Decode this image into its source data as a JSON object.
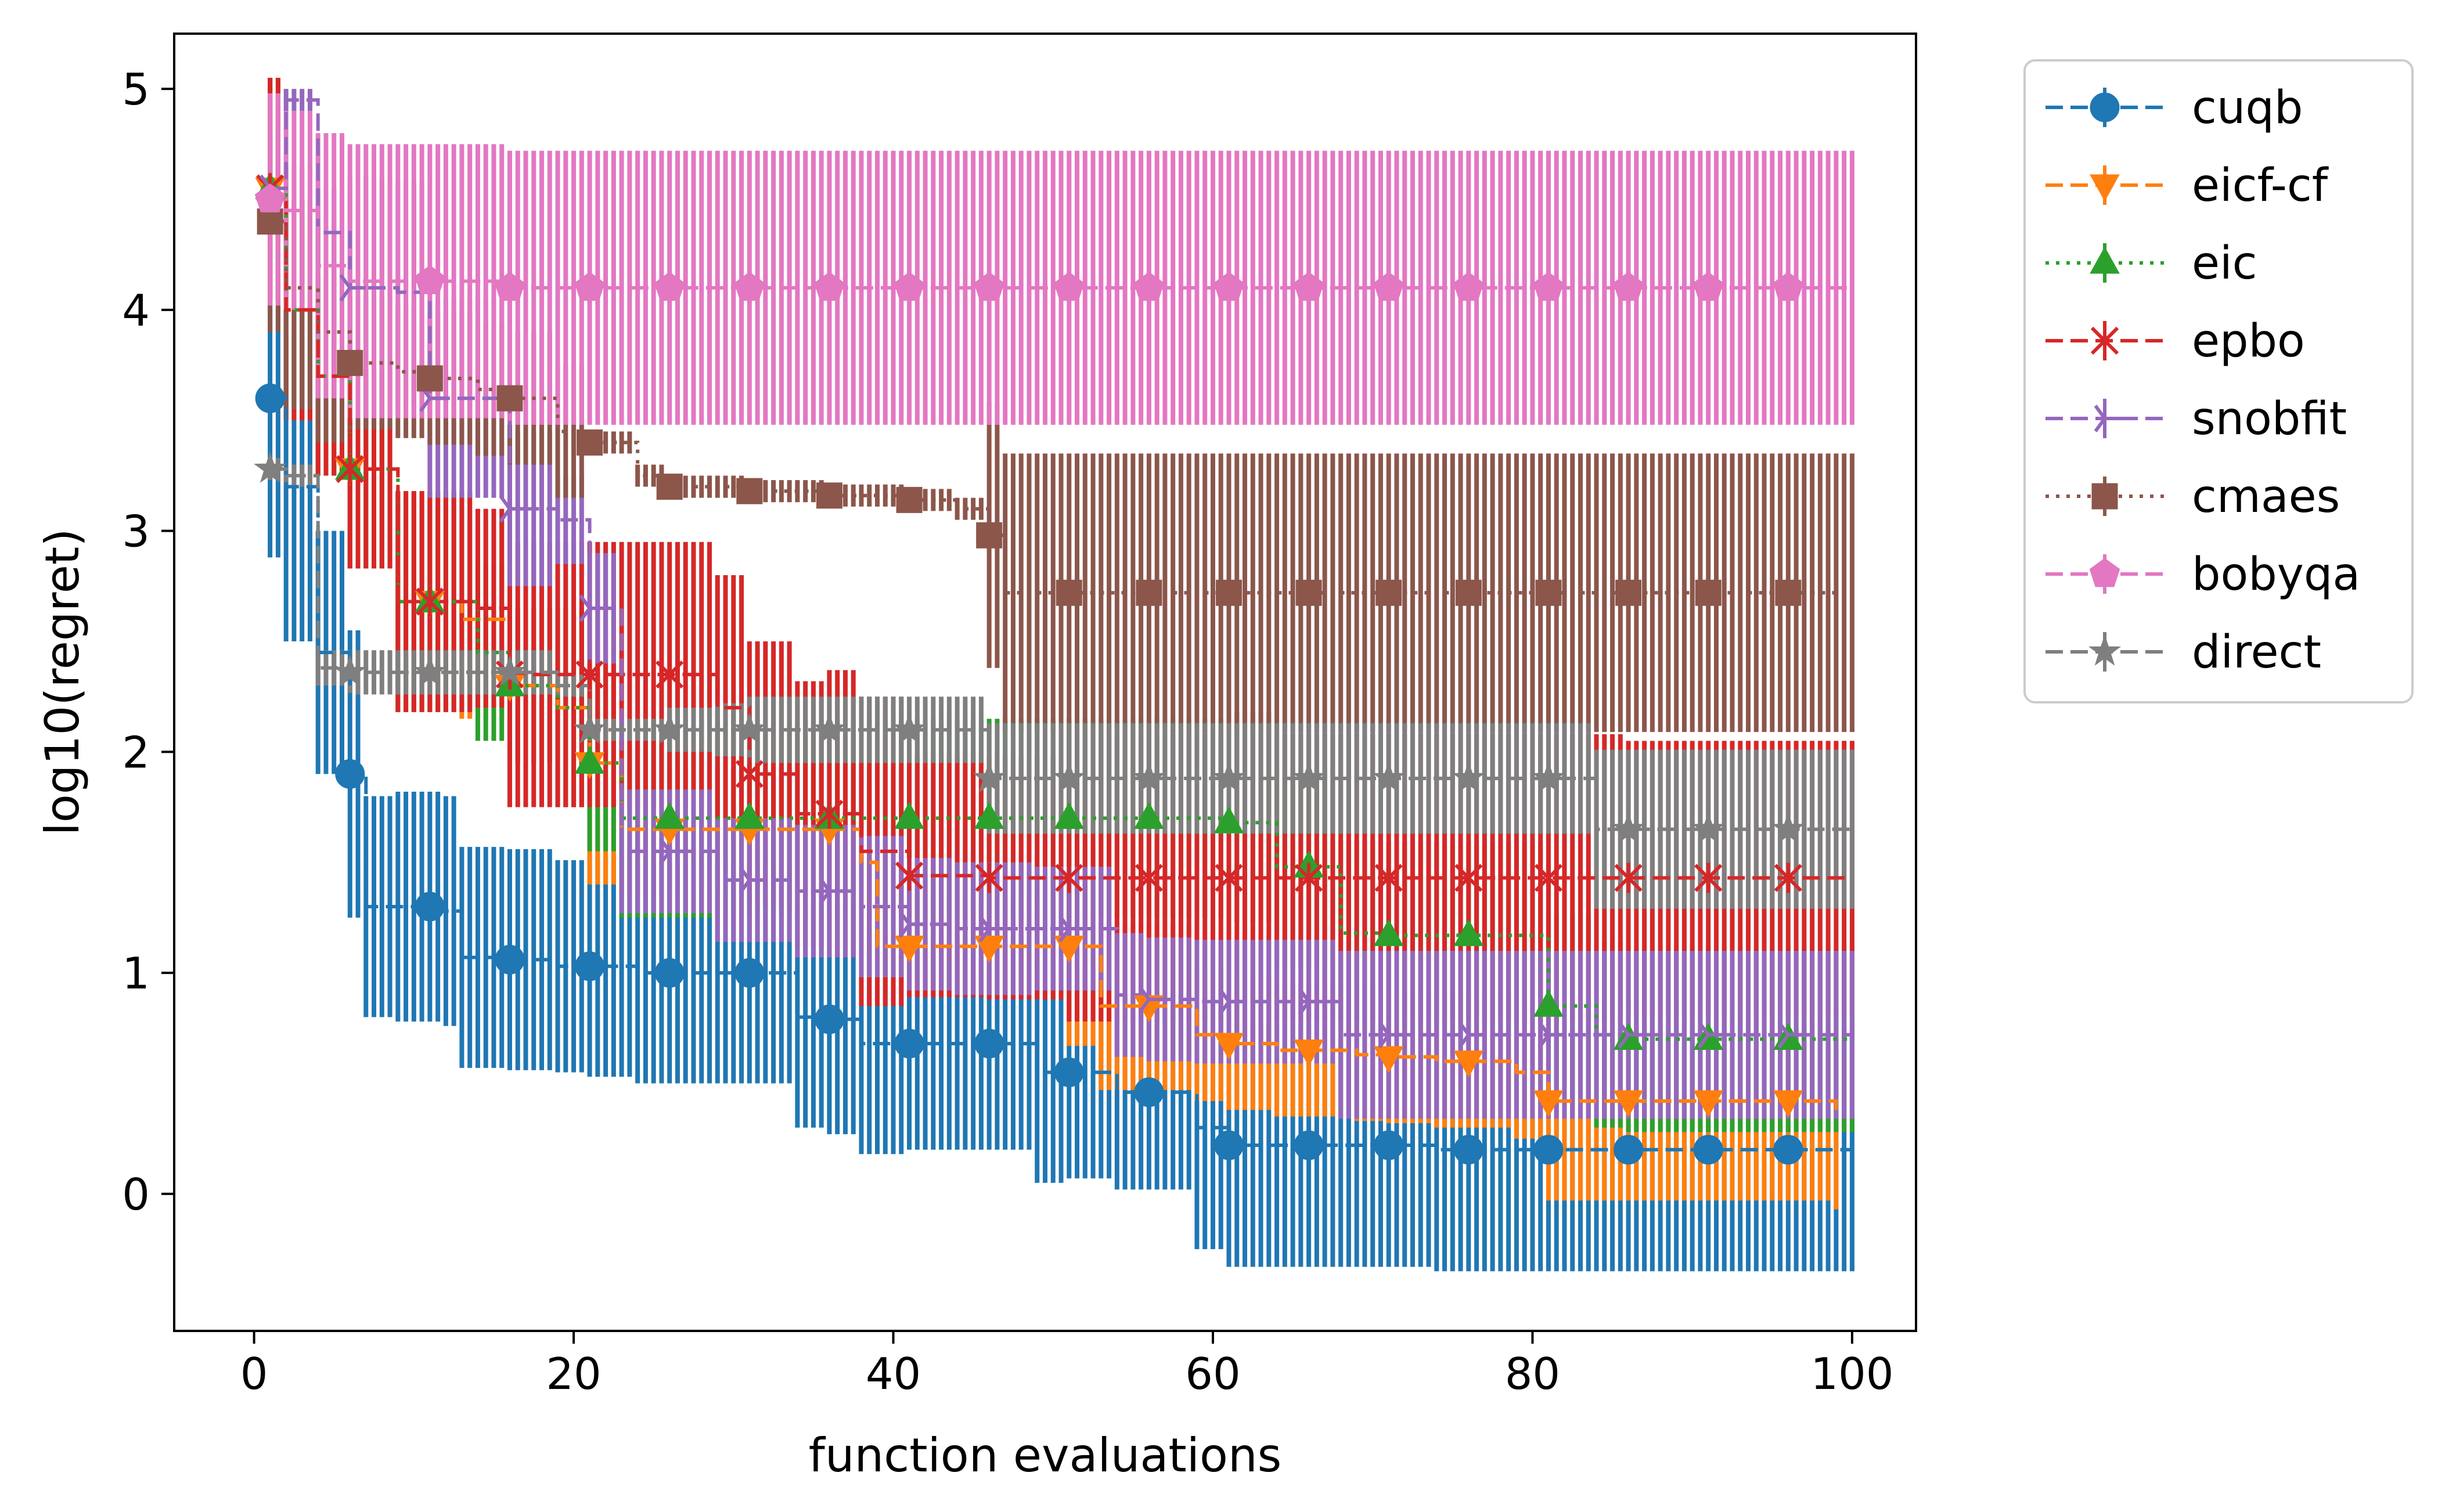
{
  "chart_data": {
    "type": "line",
    "title": "",
    "xlabel": "function evaluations",
    "ylabel": "log10(regret)",
    "xlim": [
      -5,
      104
    ],
    "ylim": [
      -0.62,
      5.25
    ],
    "xticks": [
      0,
      20,
      40,
      60,
      80,
      100
    ],
    "yticks": [
      0,
      1,
      2,
      3,
      4,
      5
    ],
    "grid": false,
    "legend_position": "outside-top-right",
    "series": [
      {
        "name": "cuqb",
        "color": "#1f77b4",
        "dash": "dashed",
        "marker": "circle",
        "x": [
          1,
          2,
          4,
          6,
          7,
          9,
          12,
          13,
          16,
          19,
          21,
          24,
          26,
          29,
          31,
          34,
          36,
          38,
          41,
          44,
          46,
          49,
          51,
          54,
          56,
          59,
          61,
          64,
          66,
          69,
          71,
          74,
          76,
          79,
          81,
          84,
          86,
          89,
          91,
          94,
          96,
          100
        ],
        "y": [
          3.6,
          3.2,
          2.45,
          1.9,
          1.3,
          1.3,
          1.28,
          1.07,
          1.06,
          1.03,
          1.03,
          1.0,
          1.0,
          1.0,
          1.0,
          0.8,
          0.79,
          0.68,
          0.68,
          0.68,
          0.68,
          0.55,
          0.55,
          0.46,
          0.46,
          0.3,
          0.22,
          0.22,
          0.22,
          0.22,
          0.22,
          0.2,
          0.2,
          0.2,
          0.2,
          0.2,
          0.2,
          0.2,
          0.2,
          0.2,
          0.2,
          0.2
        ],
        "err": [
          0.72,
          0.7,
          0.55,
          0.65,
          0.5,
          0.52,
          0.52,
          0.5,
          0.5,
          0.48,
          0.5,
          0.5,
          0.5,
          0.5,
          0.5,
          0.5,
          0.52,
          0.5,
          0.48,
          0.48,
          0.48,
          0.5,
          0.48,
          0.44,
          0.44,
          0.55,
          0.55,
          0.55,
          0.55,
          0.55,
          0.55,
          0.55,
          0.55,
          0.55,
          0.55,
          0.55,
          0.55,
          0.55,
          0.55,
          0.55,
          0.55,
          0.55
        ],
        "markers_x": [
          1,
          6,
          11,
          16,
          21,
          26,
          31,
          36,
          41,
          46,
          51,
          56,
          61,
          66,
          71,
          76,
          81,
          86,
          91,
          96
        ]
      },
      {
        "name": "eicf-cf",
        "color": "#ff7f0e",
        "dash": "dashed",
        "marker": "triangle-down",
        "x": [
          1,
          2,
          4,
          6,
          9,
          11,
          13,
          16,
          19,
          21,
          23,
          26,
          29,
          31,
          34,
          36,
          38,
          39,
          41,
          44,
          46,
          49,
          51,
          53,
          56,
          59,
          61,
          64,
          66,
          69,
          71,
          74,
          76,
          79,
          81,
          84,
          86,
          89,
          91,
          94,
          96,
          99
        ],
        "y": [
          4.55,
          4.0,
          3.7,
          3.28,
          2.68,
          2.68,
          2.6,
          2.3,
          2.2,
          1.95,
          1.65,
          1.65,
          1.65,
          1.65,
          1.65,
          1.65,
          1.5,
          1.12,
          1.12,
          1.12,
          1.12,
          1.12,
          1.12,
          0.85,
          0.85,
          0.72,
          0.68,
          0.65,
          0.65,
          0.63,
          0.62,
          0.6,
          0.6,
          0.55,
          0.42,
          0.42,
          0.42,
          0.42,
          0.42,
          0.42,
          0.42,
          0.38
        ],
        "err": [
          0.5,
          0.5,
          0.45,
          0.45,
          0.5,
          0.5,
          0.45,
          0.35,
          0.45,
          0.55,
          0.3,
          0.28,
          0.28,
          0.28,
          0.3,
          0.3,
          0.38,
          0.2,
          0.22,
          0.22,
          0.22,
          0.22,
          0.45,
          0.38,
          0.38,
          0.3,
          0.3,
          0.3,
          0.3,
          0.3,
          0.3,
          0.3,
          0.3,
          0.3,
          0.45,
          0.45,
          0.45,
          0.45,
          0.45,
          0.45,
          0.45,
          0.45
        ],
        "markers_x": [
          1,
          6,
          11,
          16,
          21,
          26,
          31,
          36,
          41,
          46,
          51,
          56,
          61,
          66,
          71,
          76,
          81,
          86,
          91,
          96
        ]
      },
      {
        "name": "eic",
        "color": "#2ca02c",
        "dash": "dotted",
        "marker": "triangle-up",
        "x": [
          1,
          2,
          4,
          6,
          9,
          11,
          14,
          16,
          19,
          21,
          23,
          26,
          29,
          31,
          34,
          36,
          38,
          41,
          44,
          46,
          49,
          51,
          54,
          56,
          59,
          61,
          64,
          66,
          68,
          71,
          74,
          76,
          79,
          81,
          84,
          86,
          89,
          91,
          94,
          96,
          100
        ],
        "y": [
          4.55,
          4.0,
          3.7,
          3.28,
          2.68,
          2.68,
          2.45,
          2.3,
          2.2,
          1.95,
          1.7,
          1.7,
          1.7,
          1.7,
          1.7,
          1.7,
          1.7,
          1.7,
          1.7,
          1.7,
          1.7,
          1.7,
          1.7,
          1.7,
          1.7,
          1.68,
          1.48,
          1.48,
          1.18,
          1.17,
          1.17,
          1.17,
          1.17,
          0.85,
          0.72,
          0.7,
          0.7,
          0.7,
          0.7,
          0.7,
          0.7
        ],
        "err": [
          0.5,
          0.5,
          0.45,
          0.45,
          0.5,
          0.5,
          0.4,
          0.35,
          0.45,
          0.4,
          0.45,
          0.45,
          0.45,
          0.45,
          0.45,
          0.45,
          0.45,
          0.45,
          0.45,
          0.45,
          0.45,
          0.45,
          0.45,
          0.45,
          0.45,
          0.45,
          0.45,
          0.45,
          0.42,
          0.42,
          0.42,
          0.42,
          0.42,
          0.42,
          0.42,
          0.42,
          0.42,
          0.42,
          0.42,
          0.42,
          0.42
        ],
        "markers_x": [
          1,
          6,
          11,
          16,
          21,
          26,
          31,
          36,
          41,
          46,
          51,
          56,
          61,
          66,
          71,
          76,
          81,
          86,
          91,
          96
        ]
      },
      {
        "name": "epbo",
        "color": "#d62728",
        "dash": "dashed",
        "marker": "x-star",
        "x": [
          1,
          2,
          4,
          6,
          9,
          11,
          14,
          16,
          19,
          21,
          24,
          26,
          29,
          31,
          34,
          36,
          38,
          41,
          44,
          46,
          49,
          51,
          54,
          56,
          59,
          61,
          64,
          66,
          69,
          71,
          74,
          76,
          79,
          81,
          84,
          86,
          89,
          91,
          94,
          96,
          100
        ],
        "y": [
          4.55,
          4.0,
          3.7,
          3.28,
          2.68,
          2.68,
          2.65,
          2.35,
          2.35,
          2.35,
          2.35,
          2.35,
          2.2,
          1.9,
          1.72,
          1.72,
          1.55,
          1.44,
          1.44,
          1.43,
          1.43,
          1.43,
          1.43,
          1.43,
          1.43,
          1.43,
          1.43,
          1.43,
          1.43,
          1.43,
          1.43,
          1.43,
          1.43,
          1.43,
          1.43,
          1.43,
          1.43,
          1.43,
          1.43,
          1.43,
          1.43
        ],
        "err": [
          0.5,
          0.5,
          0.45,
          0.45,
          0.5,
          0.5,
          0.45,
          0.6,
          0.6,
          0.6,
          0.6,
          0.6,
          0.6,
          0.6,
          0.6,
          0.65,
          0.7,
          0.55,
          0.55,
          0.55,
          0.55,
          0.65,
          0.65,
          0.65,
          0.65,
          0.75,
          0.65,
          0.65,
          0.65,
          0.65,
          0.65,
          0.65,
          0.65,
          0.65,
          0.65,
          0.62,
          0.62,
          0.62,
          0.62,
          0.62,
          0.62
        ],
        "markers_x": [
          1,
          6,
          11,
          16,
          21,
          26,
          31,
          36,
          41,
          46,
          51,
          56,
          61,
          66,
          71,
          76,
          81,
          86,
          91,
          96
        ]
      },
      {
        "name": "snobfit",
        "color": "#9467bd",
        "dash": "dashed",
        "marker": "tri-right",
        "x": [
          1,
          2,
          4,
          6,
          9,
          11,
          14,
          16,
          19,
          21,
          23,
          26,
          29,
          31,
          34,
          36,
          38,
          41,
          44,
          46,
          49,
          51,
          54,
          56,
          59,
          61,
          64,
          66,
          68,
          71,
          74,
          76,
          79,
          81,
          84,
          86,
          89,
          91,
          94,
          96,
          100
        ],
        "y": [
          4.55,
          4.95,
          4.35,
          4.1,
          4.08,
          3.6,
          3.6,
          3.1,
          3.05,
          2.65,
          1.55,
          1.55,
          1.42,
          1.42,
          1.37,
          1.37,
          1.3,
          1.22,
          1.2,
          1.2,
          1.2,
          1.2,
          0.9,
          0.88,
          0.87,
          0.87,
          0.87,
          0.87,
          0.72,
          0.72,
          0.72,
          0.72,
          0.72,
          0.72,
          0.72,
          0.72,
          0.72,
          0.72,
          0.72,
          0.72,
          0.72
        ],
        "err": [
          0.25,
          0.05,
          0.2,
          0.5,
          0.5,
          0.45,
          0.45,
          0.35,
          0.2,
          0.25,
          0.28,
          0.28,
          0.28,
          0.28,
          0.3,
          0.3,
          0.32,
          0.3,
          0.3,
          0.3,
          0.28,
          0.28,
          0.28,
          0.28,
          0.28,
          0.28,
          0.28,
          0.28,
          0.38,
          0.38,
          0.38,
          0.38,
          0.38,
          0.38,
          0.38,
          0.38,
          0.38,
          0.38,
          0.38,
          0.38,
          0.38
        ],
        "markers_x": [
          1,
          6,
          11,
          16,
          21,
          26,
          31,
          36,
          41,
          46,
          51,
          56,
          61,
          66,
          71,
          76,
          81,
          86,
          91,
          96
        ]
      },
      {
        "name": "cmaes",
        "color": "#8c564b",
        "dash": "dotted",
        "marker": "square",
        "x": [
          1,
          2,
          4,
          6,
          9,
          11,
          14,
          16,
          19,
          21,
          24,
          26,
          29,
          31,
          34,
          36,
          39,
          41,
          44,
          46,
          47,
          51,
          54,
          56,
          59,
          61,
          64,
          66,
          69,
          71,
          74,
          76,
          79,
          81,
          84,
          86,
          89,
          91,
          94,
          96,
          100
        ],
        "y": [
          4.4,
          4.1,
          3.9,
          3.76,
          3.72,
          3.69,
          3.64,
          3.6,
          3.45,
          3.4,
          3.25,
          3.2,
          3.2,
          3.18,
          3.18,
          3.16,
          3.16,
          3.14,
          3.1,
          2.98,
          2.72,
          2.72,
          2.72,
          2.72,
          2.72,
          2.72,
          2.72,
          2.72,
          2.72,
          2.72,
          2.72,
          2.72,
          2.72,
          2.72,
          2.72,
          2.72,
          2.72,
          2.72,
          2.72,
          2.72,
          2.72
        ],
        "err": [
          0.5,
          0.55,
          0.5,
          0.3,
          0.3,
          0.3,
          0.3,
          0.3,
          0.3,
          0.05,
          0.05,
          0.05,
          0.05,
          0.05,
          0.05,
          0.05,
          0.05,
          0.05,
          0.05,
          0.6,
          0.63,
          0.63,
          0.63,
          0.63,
          0.63,
          0.63,
          0.63,
          0.63,
          0.63,
          0.63,
          0.63,
          0.63,
          0.63,
          0.63,
          0.63,
          0.63,
          0.63,
          0.63,
          0.63,
          0.63,
          0.63
        ],
        "markers_x": [
          1,
          6,
          11,
          16,
          21,
          26,
          31,
          36,
          41,
          46,
          51,
          56,
          61,
          66,
          71,
          76,
          81,
          86,
          91,
          96
        ]
      },
      {
        "name": "bobyqa",
        "color": "#e377c2",
        "dash": "dashed",
        "marker": "pentagon",
        "x": [
          1,
          2,
          4,
          6,
          9,
          11,
          14,
          16,
          19,
          21,
          24,
          26,
          29,
          31,
          34,
          36,
          39,
          41,
          44,
          46,
          49,
          51,
          54,
          56,
          59,
          61,
          64,
          66,
          69,
          71,
          74,
          76,
          79,
          81,
          84,
          86,
          89,
          91,
          94,
          96,
          100
        ],
        "y": [
          4.5,
          4.45,
          4.2,
          4.13,
          4.13,
          4.13,
          4.13,
          4.1,
          4.1,
          4.1,
          4.1,
          4.1,
          4.1,
          4.1,
          4.1,
          4.1,
          4.1,
          4.1,
          4.1,
          4.1,
          4.1,
          4.1,
          4.1,
          4.1,
          4.1,
          4.1,
          4.1,
          4.1,
          4.1,
          4.1,
          4.1,
          4.1,
          4.1,
          4.1,
          4.1,
          4.1,
          4.1,
          4.1,
          4.1,
          4.1,
          4.1
        ],
        "err": [
          0.48,
          0.45,
          0.6,
          0.62,
          0.62,
          0.62,
          0.62,
          0.62,
          0.62,
          0.62,
          0.62,
          0.62,
          0.62,
          0.62,
          0.62,
          0.62,
          0.62,
          0.62,
          0.62,
          0.62,
          0.62,
          0.62,
          0.62,
          0.62,
          0.62,
          0.62,
          0.62,
          0.62,
          0.62,
          0.62,
          0.62,
          0.62,
          0.62,
          0.62,
          0.62,
          0.62,
          0.62,
          0.62,
          0.62,
          0.62,
          0.62
        ],
        "markers_x": [
          1,
          11,
          16,
          21,
          26,
          31,
          36,
          41,
          46,
          51,
          56,
          61,
          66,
          71,
          76,
          81,
          86,
          91,
          96
        ]
      },
      {
        "name": "direct",
        "color": "#7f7f7f",
        "dash": "dashed",
        "marker": "star",
        "x": [
          1,
          2,
          4,
          6,
          9,
          11,
          14,
          16,
          19,
          21,
          24,
          26,
          29,
          31,
          34,
          36,
          39,
          41,
          44,
          46,
          49,
          51,
          54,
          56,
          59,
          61,
          64,
          66,
          69,
          71,
          74,
          76,
          79,
          81,
          84,
          86,
          89,
          91,
          94,
          96,
          100
        ],
        "y": [
          3.28,
          3.25,
          2.38,
          2.36,
          2.36,
          2.36,
          2.36,
          2.36,
          2.3,
          2.1,
          2.1,
          2.1,
          2.1,
          2.1,
          2.1,
          2.1,
          2.1,
          2.1,
          2.1,
          1.88,
          1.88,
          1.88,
          1.88,
          1.88,
          1.88,
          1.88,
          1.88,
          1.88,
          1.88,
          1.88,
          1.88,
          1.88,
          1.88,
          1.88,
          1.65,
          1.65,
          1.65,
          1.65,
          1.65,
          1.65,
          1.65
        ],
        "err": [
          0.05,
          0.05,
          0.08,
          0.1,
          0.1,
          0.1,
          0.1,
          0.1,
          0.05,
          0.05,
          0.05,
          0.1,
          0.12,
          0.15,
          0.15,
          0.15,
          0.15,
          0.15,
          0.15,
          0.25,
          0.25,
          0.25,
          0.25,
          0.25,
          0.25,
          0.25,
          0.25,
          0.25,
          0.25,
          0.25,
          0.25,
          0.25,
          0.25,
          0.25,
          0.36,
          0.36,
          0.36,
          0.36,
          0.36,
          0.36,
          0.36
        ],
        "markers_x": [
          1,
          6,
          11,
          16,
          21,
          26,
          31,
          36,
          41,
          46,
          51,
          56,
          61,
          66,
          71,
          76,
          81,
          86,
          91,
          96
        ]
      }
    ]
  }
}
